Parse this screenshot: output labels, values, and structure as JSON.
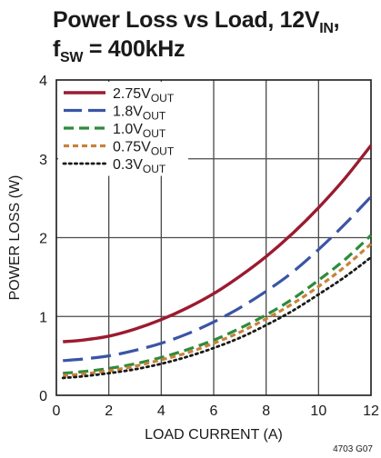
{
  "title": {
    "line1_main": "Power Loss vs Load, 12V",
    "line1_sub": "IN",
    "line1_suffix": ",",
    "line2_main": "f",
    "line2_sub": "SW",
    "line2_suffix": " = 400kHz"
  },
  "figure_id": "4703 G07",
  "chart_data": {
    "type": "line",
    "xlabel": "LOAD CURRENT (A)",
    "ylabel": "POWER LOSS (W)",
    "xlim": [
      0,
      12
    ],
    "ylim": [
      0,
      4
    ],
    "xticks": [
      0,
      2,
      4,
      6,
      8,
      10,
      12
    ],
    "yticks": [
      0,
      1,
      2,
      3,
      4
    ],
    "grid": true,
    "legend_position": "top-left",
    "x": [
      0.25,
      1,
      2,
      3,
      4,
      5,
      6,
      7,
      8,
      9,
      10,
      11,
      12
    ],
    "series": [
      {
        "name": "2.75V",
        "name_sub": "OUT",
        "color": "#9b1b30",
        "style": "solid",
        "values": [
          0.68,
          0.7,
          0.75,
          0.84,
          0.96,
          1.11,
          1.29,
          1.51,
          1.76,
          2.05,
          2.38,
          2.75,
          3.17
        ]
      },
      {
        "name": "1.8V",
        "name_sub": "OUT",
        "color": "#3a55a4",
        "style": "longdash",
        "values": [
          0.44,
          0.46,
          0.5,
          0.57,
          0.66,
          0.78,
          0.93,
          1.11,
          1.32,
          1.56,
          1.85,
          2.17,
          2.52
        ]
      },
      {
        "name": "1.0V",
        "name_sub": "OUT",
        "color": "#2e8b3c",
        "style": "dash",
        "values": [
          0.28,
          0.3,
          0.34,
          0.4,
          0.48,
          0.58,
          0.7,
          0.85,
          1.02,
          1.22,
          1.46,
          1.72,
          2.03
        ]
      },
      {
        "name": "0.75V",
        "name_sub": "OUT",
        "color": "#c8823a",
        "style": "shortdash",
        "values": [
          0.25,
          0.27,
          0.31,
          0.37,
          0.45,
          0.54,
          0.66,
          0.8,
          0.97,
          1.16,
          1.38,
          1.63,
          1.92
        ]
      },
      {
        "name": "0.3V",
        "name_sub": "OUT",
        "color": "#1a1a1a",
        "style": "dot",
        "values": [
          0.22,
          0.24,
          0.28,
          0.33,
          0.4,
          0.49,
          0.6,
          0.73,
          0.89,
          1.07,
          1.28,
          1.5,
          1.75
        ]
      }
    ]
  }
}
